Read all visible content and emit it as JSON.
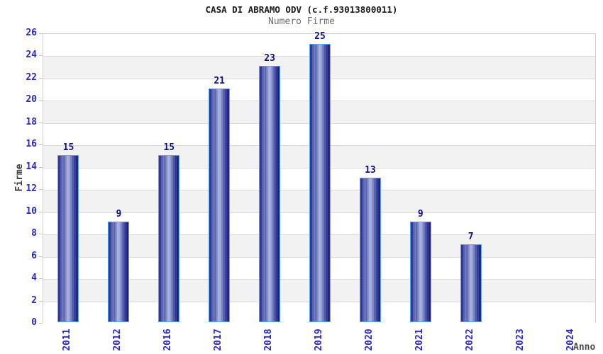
{
  "chart_data": {
    "type": "bar",
    "title": "CASA DI ABRAMO ODV (c.f.93013800011)",
    "subtitle": "Numero Firme",
    "xlabel": "Anno",
    "ylabel": "Firme",
    "categories": [
      "2011",
      "2012",
      "2016",
      "2017",
      "2018",
      "2019",
      "2020",
      "2021",
      "2022",
      "2023",
      "2024"
    ],
    "values": [
      15,
      9,
      15,
      21,
      23,
      25,
      13,
      9,
      7,
      0,
      0
    ],
    "ylim": [
      0,
      26
    ],
    "ytick_step": 2,
    "grid": "horizontal-bands",
    "legend": "none",
    "colors": {
      "bar_fill_dark": "#12127c",
      "bar_fill_light": "#a9b3e2",
      "bar_border": "#5aa7f2",
      "axis_tick_label": "#2828cc",
      "value_label": "#101086",
      "band_gray": "#f2f2f2",
      "gridline": "#dcdcdc",
      "plot_border": "#cfcfcf",
      "title_color": "#1a1a1a",
      "subtitle_color": "#6e6e6e",
      "axis_title_color": "#3d3d3d"
    }
  }
}
